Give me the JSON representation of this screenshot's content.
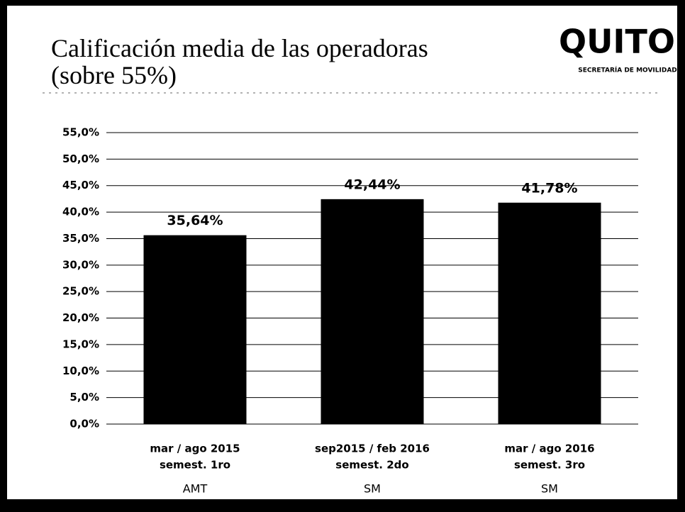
{
  "chart_data": {
    "type": "bar",
    "title": [
      "Calificación media de las operadoras",
      "(sobre 55%)"
    ],
    "logo": {
      "name": "QUITO",
      "subtitle": "SECRETARÍA DE MOVILIDAD"
    },
    "categories": [
      [
        "mar / ago 2015",
        "semest. 1ro"
      ],
      [
        "sep2015 / feb 2016",
        "semest. 2do"
      ],
      [
        "mar / ago 2016",
        "semest. 3ro"
      ]
    ],
    "operators": [
      "AMT",
      "SM",
      "SM"
    ],
    "values": [
      35.64,
      42.44,
      41.78
    ],
    "value_labels": [
      "35,64%",
      "42,44%",
      "41,78%"
    ],
    "color": "#000000",
    "ylim": [
      0,
      55
    ],
    "yticks": [
      {
        "value": 0,
        "label": "0,0%"
      },
      {
        "value": 5,
        "label": "5,0%"
      },
      {
        "value": 10,
        "label": "10,0%"
      },
      {
        "value": 15,
        "label": "15,0%"
      },
      {
        "value": 20,
        "label": "20,0%"
      },
      {
        "value": 25,
        "label": "25,0%"
      },
      {
        "value": 30,
        "label": "30,0%"
      },
      {
        "value": 35,
        "label": "35,0%"
      },
      {
        "value": 40,
        "label": "40,0%"
      },
      {
        "value": 45,
        "label": "45,0%"
      },
      {
        "value": 50,
        "label": "50,0%"
      },
      {
        "value": 55,
        "label": "55,0%"
      }
    ],
    "grid": true
  }
}
